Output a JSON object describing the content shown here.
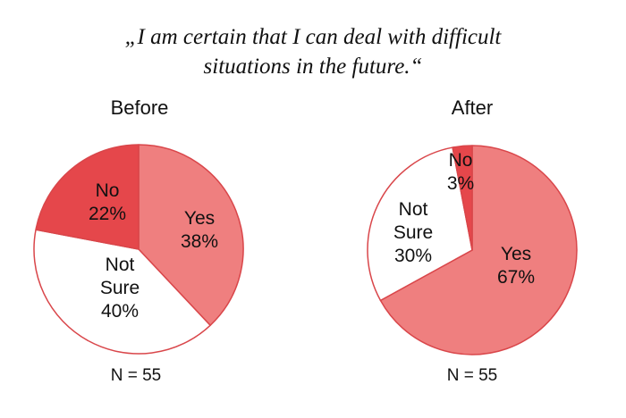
{
  "quote": {
    "line1": "„I am certain that I can deal with difficult",
    "line2": "situations in the future.“"
  },
  "colors": {
    "yes": "#ef7f7f",
    "no": "#e5474b",
    "not_sure": "#ffffff",
    "outline": "#d9464a"
  },
  "chart_data": [
    {
      "type": "pie",
      "title": "Before",
      "note": "N = 55",
      "slices": [
        {
          "label": "Yes",
          "value": 38,
          "display": "38%",
          "color": "#ef7f7f"
        },
        {
          "label": "Not Sure",
          "value": 40,
          "display": "40%",
          "color": "#ffffff"
        },
        {
          "label": "No",
          "value": 22,
          "display": "22%",
          "color": "#e5474b"
        }
      ]
    },
    {
      "type": "pie",
      "title": "After",
      "note": "N = 55",
      "slices": [
        {
          "label": "Yes",
          "value": 67,
          "display": "67%",
          "color": "#ef7f7f"
        },
        {
          "label": "Not Sure",
          "value": 30,
          "display": "30%",
          "color": "#ffffff"
        },
        {
          "label": "No",
          "value": 3,
          "display": "3%",
          "color": "#e5474b"
        }
      ]
    }
  ]
}
